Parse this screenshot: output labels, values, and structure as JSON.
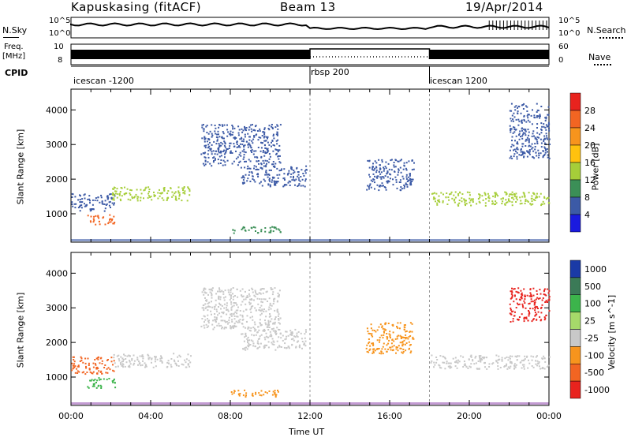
{
  "header": {
    "station": "Kapuskasing (fitACF)",
    "beam": "Beam 13",
    "date": "19/Apr/2014"
  },
  "strip_panels": {
    "nsky_label": "N.Sky",
    "nsearch_label": "N.Search",
    "nsky_ticks": [
      "10^5",
      "10^0"
    ],
    "nsearch_ticks": [
      "10^5",
      "10^0"
    ],
    "freq_label": "Freq.",
    "freq_unit": "[MHz]",
    "freq_ticks": [
      "10",
      "8"
    ],
    "nave_label": "Nave",
    "nave_ticks": [
      "60",
      "0"
    ],
    "cpid_label": "CPID",
    "cpid_segments": [
      {
        "name": "icescan -1200",
        "start": 0,
        "end": 12
      },
      {
        "name": "rbsp 200",
        "start": 12,
        "end": 18
      },
      {
        "name": "icescan 1200",
        "start": 18,
        "end": 24
      }
    ]
  },
  "chart_data": [
    {
      "type": "heatmap",
      "panel": "power",
      "ylabel": "Slant Range [km]",
      "xlim": [
        0,
        24
      ],
      "ylim": [
        180,
        4600
      ],
      "yticks": [
        "1000",
        "2000",
        "3000",
        "4000"
      ],
      "colorbar": {
        "label": "Power [dB]",
        "ticks": [
          "28",
          "24",
          "20",
          "16",
          "12",
          "8",
          "4"
        ],
        "colors": [
          "#e8231e",
          "#f26522",
          "#f7941d",
          "#ffc20e",
          "#a6ce39",
          "#3b8f57",
          "#3c5aa6",
          "#1a1adf"
        ]
      },
      "echo_bands": [
        {
          "t0": 0.0,
          "t1": 2.2,
          "r0": 1100,
          "r1": 1600,
          "color": "#3c5aa6"
        },
        {
          "t0": 0.8,
          "t1": 2.2,
          "r0": 700,
          "r1": 1000,
          "color": "#f26522"
        },
        {
          "t0": 2.0,
          "t1": 6.0,
          "r0": 1400,
          "r1": 1800,
          "color": "#a6ce39"
        },
        {
          "t0": 6.5,
          "t1": 10.5,
          "r0": 2400,
          "r1": 3600,
          "color": "#3c5aa6"
        },
        {
          "t0": 8.5,
          "t1": 11.8,
          "r0": 1800,
          "r1": 2400,
          "color": "#3c5aa6"
        },
        {
          "t0": 8.0,
          "t1": 10.5,
          "r0": 450,
          "r1": 650,
          "color": "#3b8f57"
        },
        {
          "t0": 14.8,
          "t1": 17.2,
          "r0": 1700,
          "r1": 2600,
          "color": "#3c5aa6"
        },
        {
          "t0": 18.0,
          "t1": 24.0,
          "r0": 1250,
          "r1": 1650,
          "color": "#a6ce39"
        },
        {
          "t0": 22.0,
          "t1": 24.0,
          "r0": 2600,
          "r1": 4200,
          "color": "#3c5aa6"
        }
      ]
    },
    {
      "type": "heatmap",
      "panel": "velocity",
      "ylabel": "Slant Range [km]",
      "xlabel": "Time UT",
      "xlim": [
        0,
        24
      ],
      "ylim": [
        180,
        4600
      ],
      "yticks": [
        "1000",
        "2000",
        "3000",
        "4000"
      ],
      "xticks": [
        "00:00",
        "04:00",
        "08:00",
        "12:00",
        "16:00",
        "20:00",
        "00:00"
      ],
      "colorbar": {
        "label": "Velocity [m s^-1]",
        "ticks": [
          "1000",
          "500",
          "100",
          "25",
          "-25",
          "-100",
          "-500",
          "-1000"
        ],
        "colors": [
          "#1a3aa6",
          "#3b7a57",
          "#3cb44b",
          "#a6d96a",
          "#c8c8c8",
          "#f7941d",
          "#f26522",
          "#e8231e"
        ]
      },
      "echo_bands": [
        {
          "t0": 0.0,
          "t1": 2.2,
          "r0": 1100,
          "r1": 1600,
          "color": "#f26522"
        },
        {
          "t0": 0.8,
          "t1": 2.2,
          "r0": 700,
          "r1": 1000,
          "color": "#3cb44b"
        },
        {
          "t0": 2.0,
          "t1": 6.0,
          "r0": 1300,
          "r1": 1700,
          "color": "#c8c8c8"
        },
        {
          "t0": 6.5,
          "t1": 10.5,
          "r0": 2400,
          "r1": 3600,
          "color": "#c8c8c8"
        },
        {
          "t0": 8.5,
          "t1": 11.8,
          "r0": 1800,
          "r1": 2400,
          "color": "#c8c8c8"
        },
        {
          "t0": 8.0,
          "t1": 10.5,
          "r0": 450,
          "r1": 650,
          "color": "#f7941d"
        },
        {
          "t0": 14.8,
          "t1": 17.2,
          "r0": 1700,
          "r1": 2600,
          "color": "#f7941d"
        },
        {
          "t0": 18.0,
          "t1": 24.0,
          "r0": 1250,
          "r1": 1650,
          "color": "#c8c8c8"
        },
        {
          "t0": 22.0,
          "t1": 24.0,
          "r0": 2600,
          "r1": 3600,
          "color": "#e8231e"
        }
      ]
    }
  ]
}
